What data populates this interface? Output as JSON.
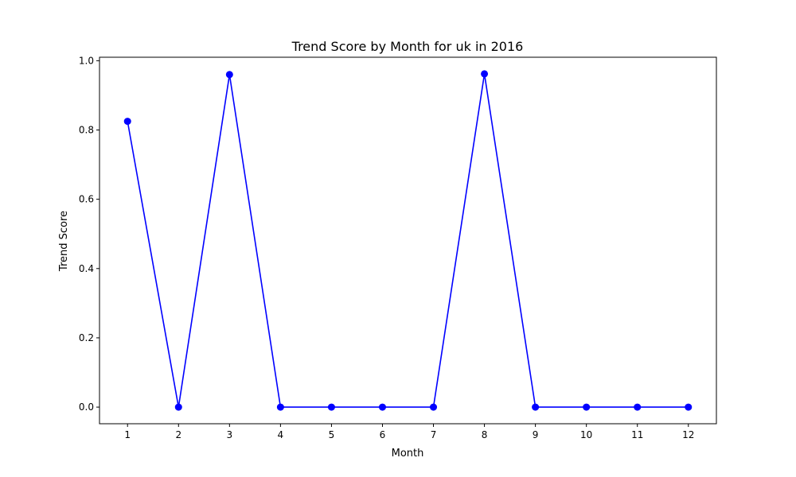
{
  "chart_data": {
    "type": "line",
    "title": "Trend Score by Month for uk in 2016",
    "xlabel": "Month",
    "ylabel": "Trend Score",
    "x": [
      1,
      2,
      3,
      4,
      5,
      6,
      7,
      8,
      9,
      10,
      11,
      12
    ],
    "x_tick_labels": [
      "1",
      "2",
      "3",
      "4",
      "5",
      "6",
      "7",
      "8",
      "9",
      "10",
      "11",
      "12"
    ],
    "y_tick_values": [
      0.0,
      0.2,
      0.4,
      0.6,
      0.8,
      1.0
    ],
    "y_tick_labels": [
      "0.0",
      "0.2",
      "0.4",
      "0.6",
      "0.8",
      "1.0"
    ],
    "xlim": [
      0.45,
      12.55
    ],
    "ylim": [
      -0.048,
      1.01
    ],
    "grid": false,
    "series": [
      {
        "values": [
          0.825,
          0.0,
          0.96,
          0.0,
          0.0,
          0.0,
          0.0,
          0.962,
          0.0,
          0.0,
          0.0,
          0.0
        ],
        "color": "#0000ff",
        "marker": "circle"
      }
    ]
  }
}
